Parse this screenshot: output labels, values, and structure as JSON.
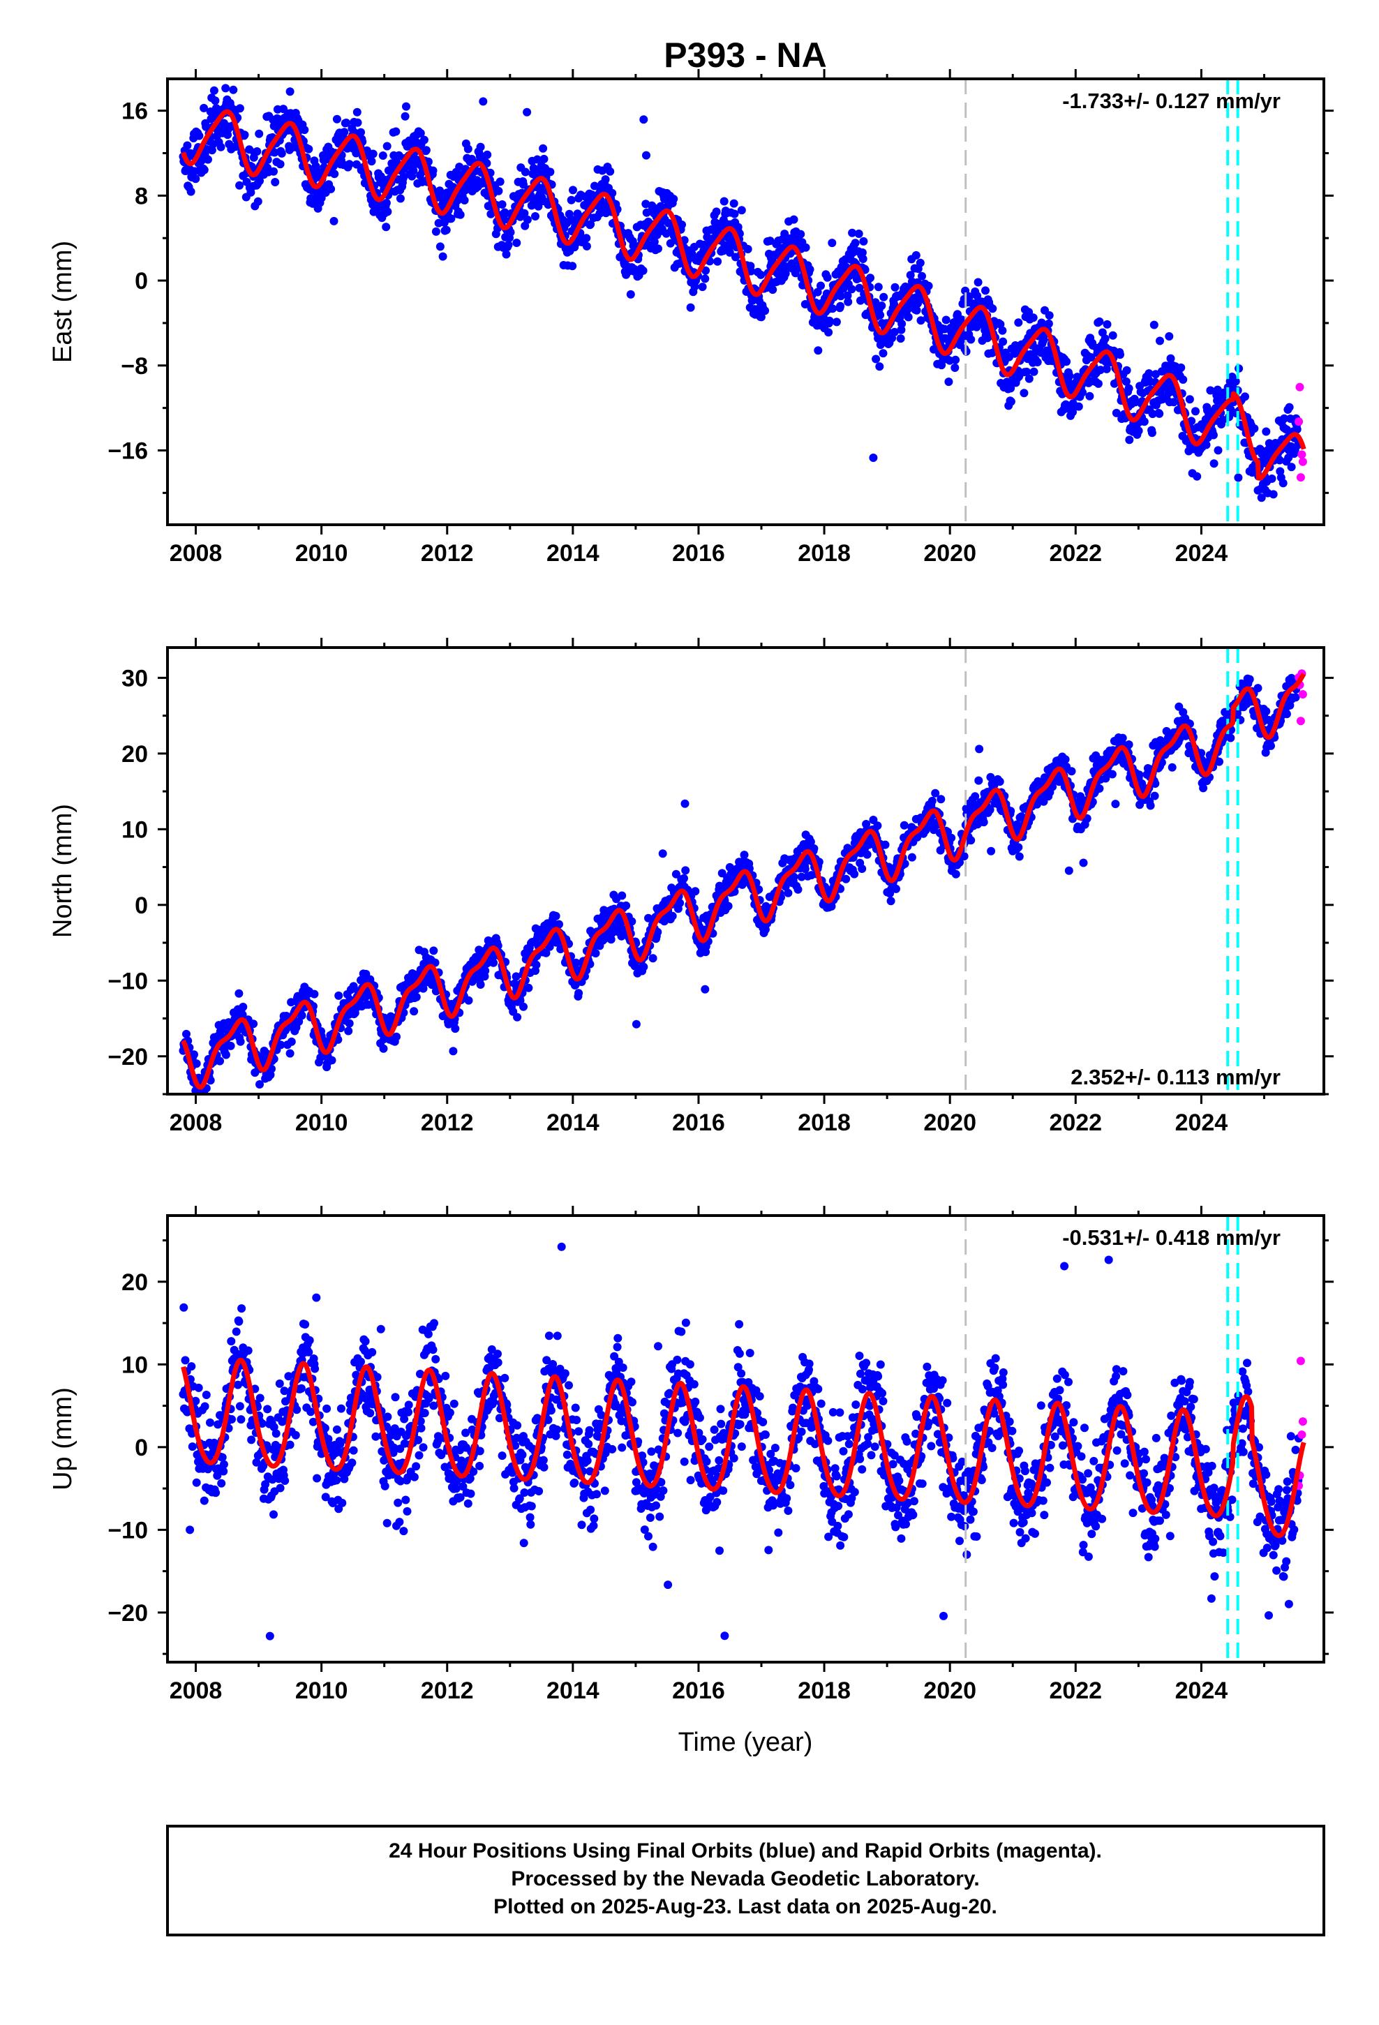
{
  "chart_data": {
    "type": "scatter",
    "title": "P393 - NA",
    "xlabel": "Time (year)",
    "xlim": [
      2007.55,
      2025.95
    ],
    "x_ticks": [
      "2008",
      "2010",
      "2012",
      "2014",
      "2016",
      "2018",
      "2020",
      "2022",
      "2024"
    ],
    "legend_text": [
      "24 Hour Positions Using Final Orbits (blue) and Rapid Orbits (magenta).",
      "Processed by the Nevada Geodetic Laboratory.",
      "Plotted on 2025-Aug-23. Last data on 2025-Aug-20."
    ],
    "colors": {
      "final_orbits": "#0000ff",
      "rapid_orbits": "#ff00ff",
      "model": "#ff0000",
      "offset_line": "#c0c0c0",
      "equipment_change": "#00ffff"
    },
    "vertical_lines": {
      "gray": [
        2020.25
      ],
      "cyan": [
        2024.42,
        2024.58
      ]
    },
    "panels": [
      {
        "name": "east",
        "ylabel": "East (mm)",
        "ylim": [
          -23,
          19
        ],
        "y_ticks": [
          "16",
          "8",
          "0",
          "-8",
          "-16"
        ],
        "rate_text": "-1.733+/- 0.127 mm/yr",
        "rate_position": "top-right",
        "model": {
          "intercept": 14.0,
          "quad": -0.04,
          "rate": -1.0,
          "amp_annual": 2.6,
          "phase_annual": 0.45,
          "amp_semiannual": 0.5,
          "phase_semiannual": 0.1,
          "scatter": 1.4,
          "seed": 11
        }
      },
      {
        "name": "north",
        "ylabel": "North (mm)",
        "ylim": [
          -25,
          34
        ],
        "y_ticks": [
          "30",
          "20",
          "10",
          "0",
          "-10",
          "-20"
        ],
        "rate_text": "2.352+/- 0.113 mm/yr",
        "rate_position": "bottom-right",
        "model": {
          "intercept": -20.5,
          "quad": 0.02,
          "rate": 2.25,
          "amp_annual": 3.2,
          "phase_annual": 0.62,
          "amp_semiannual": 1.2,
          "phase_semiannual": 0.3,
          "scatter": 1.2,
          "seed": 23
        }
      },
      {
        "name": "up",
        "ylabel": "Up (mm)",
        "ylim": [
          -26,
          28
        ],
        "y_ticks": [
          "20",
          "10",
          "0",
          "-10",
          "-20"
        ],
        "rate_text": "-0.531+/- 0.418 mm/yr",
        "rate_position": "top-right",
        "model": {
          "intercept": 4.0,
          "quad": 0.0,
          "rate": -0.4,
          "amp_annual": 6.3,
          "phase_annual": 0.72,
          "amp_semiannual": 0.6,
          "phase_semiannual": 0.2,
          "scatter": 3.0,
          "seed": 37
        }
      }
    ],
    "data_range": {
      "start": 2007.8,
      "end": 2025.63,
      "rapid_start": 2025.55
    }
  }
}
